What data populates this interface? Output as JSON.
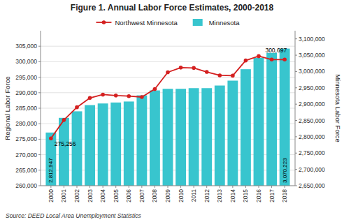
{
  "chart_data": {
    "type": "bar",
    "title": "Figure 1. Annual Labor Force Estimates, 2000-2018",
    "x": [
      2000,
      2001,
      2002,
      2003,
      2004,
      2005,
      2006,
      2007,
      2008,
      2009,
      2010,
      2011,
      2012,
      2013,
      2014,
      2015,
      2016,
      2017,
      2018
    ],
    "xlim": [
      1999.2,
      2018.8
    ],
    "xticks": [
      2000,
      2001,
      2002,
      2003,
      2004,
      2005,
      2006,
      2007,
      2008,
      2009,
      2010,
      2011,
      2012,
      2013,
      2014,
      2015,
      2016,
      2017,
      2018
    ],
    "series": [
      {
        "name": "Northwest Minnesota",
        "type": "line",
        "axis": "y",
        "color": "#D42020",
        "marker": "circle",
        "values": [
          275256,
          281200,
          285300,
          288300,
          289400,
          289100,
          288900,
          288600,
          291200,
          296600,
          298100,
          298000,
          296700,
          295600,
          295500,
          300400,
          301800,
          300697,
          300697
        ],
        "value_labels": [
          "275,256",
          null,
          null,
          null,
          null,
          null,
          null,
          null,
          null,
          null,
          null,
          null,
          null,
          null,
          null,
          null,
          null,
          null,
          "300,697"
        ]
      },
      {
        "name": "Minnesota",
        "type": "bar",
        "axis": "y2",
        "color": "#38C5CE",
        "values": [
          2812947,
          2858000,
          2878000,
          2897000,
          2902000,
          2905000,
          2908000,
          2927000,
          2942000,
          2947000,
          2947000,
          2949000,
          2949000,
          2957000,
          2972000,
          3007000,
          3042000,
          3057000,
          3070223
        ],
        "value_labels": [
          "2,812,947",
          null,
          null,
          null,
          null,
          null,
          null,
          null,
          null,
          null,
          null,
          null,
          null,
          null,
          null,
          null,
          null,
          null,
          "3,070,223"
        ]
      }
    ],
    "ylabel": "Regional Labor Force",
    "y2label": "Minnesota Labor Force",
    "ylim": [
      260000,
      310000
    ],
    "yticks": [
      {
        "value": 260000,
        "label": "260,000"
      },
      {
        "value": 265000,
        "label": "265,000"
      },
      {
        "value": 270000,
        "label": "270,000"
      },
      {
        "value": 275000,
        "label": "275,000"
      },
      {
        "value": 280000,
        "label": "280,000"
      },
      {
        "value": 285000,
        "label": "285,000"
      },
      {
        "value": 290000,
        "label": "290,000"
      },
      {
        "value": 295000,
        "label": "295,000"
      },
      {
        "value": 300000,
        "label": "300,000"
      },
      {
        "value": 305000,
        "label": "305,000"
      }
    ],
    "y2lim": [
      2650000,
      3125000
    ],
    "y2ticks": [
      {
        "value": 2650000,
        "label": "2,650,000"
      },
      {
        "value": 2700000,
        "label": "2,700,000"
      },
      {
        "value": 2750000,
        "label": "2,750,000"
      },
      {
        "value": 2800000,
        "label": "2,800,000"
      },
      {
        "value": 2850000,
        "label": "2,850,000"
      },
      {
        "value": 2900000,
        "label": "2,900,000"
      },
      {
        "value": 2950000,
        "label": "2,950,000"
      },
      {
        "value": 3000000,
        "label": "3,000,000"
      },
      {
        "value": 3050000,
        "label": "3,050,000"
      },
      {
        "value": 3100000,
        "label": "3,100,000"
      }
    ],
    "grid": true,
    "legend": "top",
    "source": "Source:  DEED Local Area Unemployment Statistics"
  }
}
